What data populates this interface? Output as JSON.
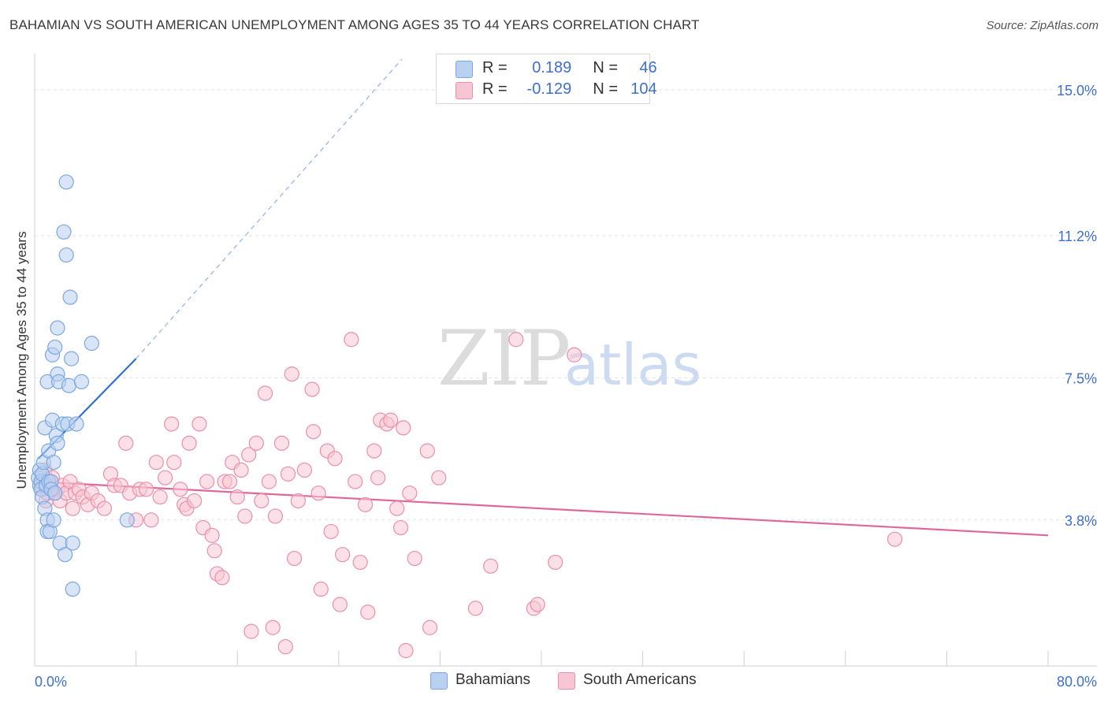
{
  "title": "BAHAMIAN VS SOUTH AMERICAN UNEMPLOYMENT AMONG AGES 35 TO 44 YEARS CORRELATION CHART",
  "source": "Source: ZipAtlas.com",
  "watermark": {
    "zip": "ZIP",
    "atlas": "atlas"
  },
  "legend": {
    "r_label": "R =",
    "n_label": "N =",
    "series": [
      {
        "name": "Bahamians",
        "r": "0.189",
        "n": "46",
        "color": "#7aa7e0",
        "fill": "#b9d0f0"
      },
      {
        "name": "South Americans",
        "r": "-0.129",
        "n": "104",
        "color": "#ea8fab",
        "fill": "#f7c6d4"
      }
    ]
  },
  "chart_data": {
    "type": "scatter",
    "title": "BAHAMIAN VS SOUTH AMERICAN UNEMPLOYMENT AMONG AGES 35 TO 44 YEARS CORRELATION CHART",
    "xlabel": "",
    "ylabel": "Unemployment Among Ages 35 to 44 years",
    "xlim": [
      0,
      80
    ],
    "ylim": [
      0,
      15.8
    ],
    "x_tick_labels": [
      "0.0%",
      "80.0%"
    ],
    "y_ticks": [
      3.8,
      7.5,
      11.2,
      15.0
    ],
    "y_tick_labels": [
      "3.8%",
      "7.5%",
      "11.2%",
      "15.0%"
    ],
    "grid": true,
    "series": [
      {
        "name": "Bahamians",
        "color": "#6a9be0",
        "points": [
          [
            0.3,
            4.9
          ],
          [
            0.4,
            4.7
          ],
          [
            0.4,
            5.1
          ],
          [
            0.5,
            4.8
          ],
          [
            0.5,
            4.6
          ],
          [
            0.6,
            5.0
          ],
          [
            0.6,
            4.4
          ],
          [
            0.7,
            5.3
          ],
          [
            0.8,
            4.1
          ],
          [
            0.8,
            6.2
          ],
          [
            0.9,
            4.7
          ],
          [
            1.0,
            7.4
          ],
          [
            1.0,
            3.8
          ],
          [
            1.0,
            3.5
          ],
          [
            1.1,
            5.6
          ],
          [
            1.1,
            4.8
          ],
          [
            1.2,
            3.5
          ],
          [
            1.3,
            4.8
          ],
          [
            1.3,
            4.6
          ],
          [
            1.4,
            6.4
          ],
          [
            1.4,
            8.1
          ],
          [
            1.5,
            3.8
          ],
          [
            1.5,
            5.3
          ],
          [
            1.6,
            8.3
          ],
          [
            1.6,
            4.5
          ],
          [
            1.7,
            6.0
          ],
          [
            1.8,
            7.6
          ],
          [
            1.8,
            5.8
          ],
          [
            1.8,
            8.8
          ],
          [
            1.9,
            7.4
          ],
          [
            2.0,
            3.2
          ],
          [
            2.2,
            6.3
          ],
          [
            2.3,
            11.3
          ],
          [
            2.4,
            2.9
          ],
          [
            2.5,
            12.6
          ],
          [
            2.5,
            10.7
          ],
          [
            2.6,
            6.3
          ],
          [
            2.7,
            7.3
          ],
          [
            2.8,
            9.6
          ],
          [
            2.9,
            8.0
          ],
          [
            3.0,
            2.0
          ],
          [
            3.0,
            3.2
          ],
          [
            3.3,
            6.3
          ],
          [
            3.7,
            7.4
          ],
          [
            4.5,
            8.4
          ],
          [
            7.3,
            3.8
          ]
        ],
        "trend": {
          "x": [
            0.3,
            8.0
          ],
          "y": [
            5.4,
            8.0
          ],
          "extended_to": [
            29.0,
            15.8
          ]
        }
      },
      {
        "name": "South Americans",
        "color": "#e87fa0",
        "points": [
          [
            0.5,
            4.8
          ],
          [
            0.6,
            4.6
          ],
          [
            0.8,
            5.1
          ],
          [
            0.9,
            4.3
          ],
          [
            1.0,
            4.5
          ],
          [
            1.2,
            4.7
          ],
          [
            1.4,
            4.9
          ],
          [
            1.6,
            4.5
          ],
          [
            1.8,
            4.6
          ],
          [
            2.0,
            4.3
          ],
          [
            2.2,
            4.7
          ],
          [
            2.5,
            4.5
          ],
          [
            2.8,
            4.8
          ],
          [
            3.0,
            4.1
          ],
          [
            3.2,
            4.5
          ],
          [
            3.5,
            4.6
          ],
          [
            3.8,
            4.4
          ],
          [
            4.2,
            4.2
          ],
          [
            4.5,
            4.5
          ],
          [
            5.0,
            4.3
          ],
          [
            5.5,
            4.1
          ],
          [
            6.0,
            5.0
          ],
          [
            6.3,
            4.7
          ],
          [
            6.8,
            4.7
          ],
          [
            7.2,
            5.8
          ],
          [
            7.5,
            4.5
          ],
          [
            8.0,
            3.8
          ],
          [
            8.3,
            4.6
          ],
          [
            8.8,
            4.6
          ],
          [
            9.2,
            3.8
          ],
          [
            9.6,
            5.3
          ],
          [
            9.9,
            4.4
          ],
          [
            10.3,
            4.9
          ],
          [
            10.8,
            6.3
          ],
          [
            11.0,
            5.3
          ],
          [
            11.5,
            4.6
          ],
          [
            11.8,
            4.2
          ],
          [
            12.0,
            4.1
          ],
          [
            12.2,
            5.8
          ],
          [
            12.6,
            4.3
          ],
          [
            13.0,
            6.3
          ],
          [
            13.3,
            3.6
          ],
          [
            13.6,
            4.8
          ],
          [
            14.0,
            3.4
          ],
          [
            14.2,
            3.0
          ],
          [
            14.4,
            2.4
          ],
          [
            14.8,
            2.3
          ],
          [
            15.0,
            4.8
          ],
          [
            15.4,
            4.8
          ],
          [
            15.6,
            5.3
          ],
          [
            16.0,
            4.4
          ],
          [
            16.3,
            5.1
          ],
          [
            16.6,
            3.9
          ],
          [
            16.9,
            5.5
          ],
          [
            17.1,
            0.9
          ],
          [
            17.5,
            5.8
          ],
          [
            17.9,
            4.3
          ],
          [
            18.2,
            7.1
          ],
          [
            18.5,
            4.8
          ],
          [
            18.8,
            1.0
          ],
          [
            19.0,
            3.9
          ],
          [
            19.5,
            5.8
          ],
          [
            20.0,
            5.0
          ],
          [
            20.3,
            7.6
          ],
          [
            20.5,
            2.8
          ],
          [
            20.8,
            4.3
          ],
          [
            21.3,
            5.1
          ],
          [
            21.9,
            7.2
          ],
          [
            22.0,
            6.1
          ],
          [
            22.4,
            4.5
          ],
          [
            22.6,
            2.0
          ],
          [
            23.1,
            5.6
          ],
          [
            23.4,
            3.5
          ],
          [
            23.7,
            5.4
          ],
          [
            24.1,
            1.6
          ],
          [
            24.3,
            2.9
          ],
          [
            25.0,
            8.5
          ],
          [
            25.3,
            4.8
          ],
          [
            25.7,
            2.7
          ],
          [
            26.1,
            4.2
          ],
          [
            26.3,
            1.4
          ],
          [
            26.8,
            5.6
          ],
          [
            27.1,
            4.9
          ],
          [
            27.3,
            6.4
          ],
          [
            27.8,
            6.3
          ],
          [
            28.1,
            6.4
          ],
          [
            28.6,
            4.1
          ],
          [
            28.9,
            3.6
          ],
          [
            29.1,
            6.2
          ],
          [
            29.3,
            0.4
          ],
          [
            29.6,
            4.5
          ],
          [
            30.0,
            2.8
          ],
          [
            31.0,
            5.6
          ],
          [
            31.2,
            1.0
          ],
          [
            31.9,
            4.9
          ],
          [
            34.8,
            1.5
          ],
          [
            36.0,
            2.6
          ],
          [
            38.0,
            8.5
          ],
          [
            39.4,
            1.5
          ],
          [
            39.7,
            1.6
          ],
          [
            41.1,
            2.7
          ],
          [
            42.6,
            8.1
          ],
          [
            67.9,
            3.3
          ],
          [
            19.8,
            0.5
          ]
        ],
        "trend": {
          "x": [
            0.0,
            80.0
          ],
          "y": [
            4.8,
            3.4
          ]
        }
      }
    ]
  }
}
